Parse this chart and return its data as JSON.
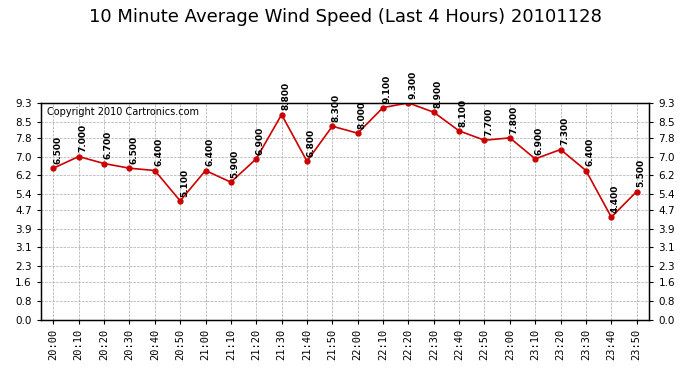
{
  "title": "10 Minute Average Wind Speed (Last 4 Hours) 20101128",
  "copyright": "Copyright 2010 Cartronics.com",
  "x_labels": [
    "20:00",
    "20:10",
    "20:20",
    "20:30",
    "20:40",
    "20:50",
    "21:00",
    "21:10",
    "21:20",
    "21:30",
    "21:40",
    "21:50",
    "22:00",
    "22:10",
    "22:20",
    "22:30",
    "22:40",
    "22:50",
    "23:00",
    "23:10",
    "23:20",
    "23:30",
    "23:40",
    "23:50"
  ],
  "y_values": [
    6.5,
    7.0,
    6.7,
    6.5,
    6.4,
    5.1,
    6.4,
    5.9,
    6.9,
    8.8,
    6.8,
    8.3,
    8.0,
    9.1,
    9.3,
    8.9,
    8.1,
    7.7,
    7.8,
    6.9,
    7.3,
    6.4,
    4.4,
    5.5
  ],
  "point_labels": [
    "6.500",
    "7.000",
    "6.700",
    "6.500",
    "6.400",
    "5.100",
    "6.400",
    "5.900",
    "6.900",
    "8.800",
    "6.800",
    "8.300",
    "8.000",
    "9.100",
    "9.300",
    "8.900",
    "8.100",
    "7.700",
    "7.800",
    "6.900",
    "7.300",
    "6.400",
    "4.400",
    "5.500"
  ],
  "line_color": "#cc0000",
  "marker_color": "#cc0000",
  "bg_color": "#ffffff",
  "plot_bg_color": "#ffffff",
  "grid_color": "#aaaaaa",
  "y_ticks": [
    0.0,
    0.8,
    1.6,
    2.3,
    3.1,
    3.9,
    4.7,
    5.4,
    6.2,
    7.0,
    7.8,
    8.5,
    9.3
  ],
  "y_min": 0.0,
  "y_max": 9.3,
  "title_fontsize": 13,
  "label_fontsize": 6.5,
  "tick_fontsize": 7.5,
  "copyright_fontsize": 7
}
